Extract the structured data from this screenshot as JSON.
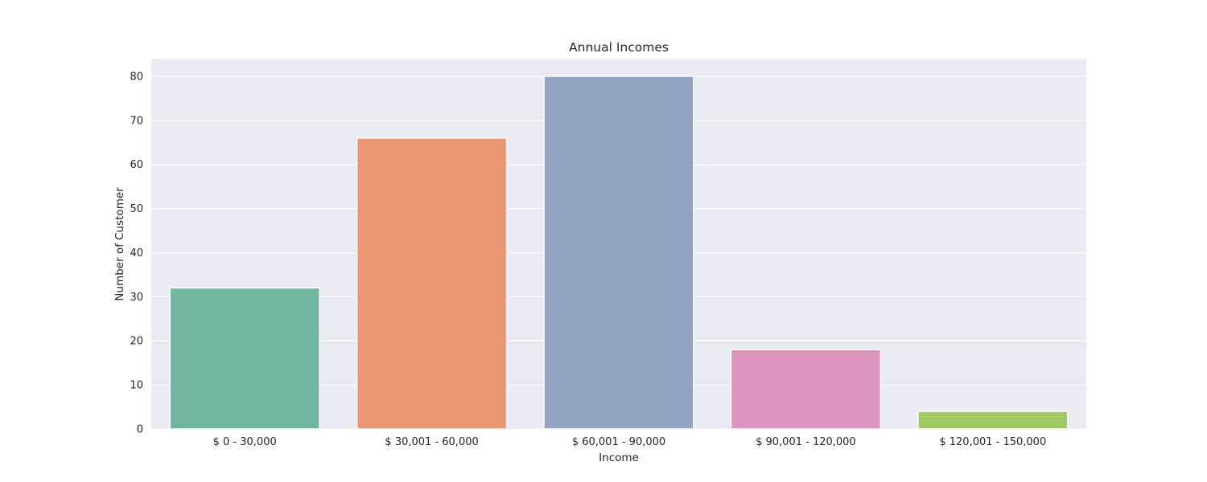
{
  "chart_data": {
    "type": "bar",
    "title": "Annual Incomes",
    "xlabel": "Income",
    "ylabel": "Number of Customer",
    "categories": [
      "$ 0 - 30,000",
      "$ 30,001 - 60,000",
      "$ 60,001 - 90,000",
      "$ 90,001 - 120,000",
      "$ 120,001 - 150,000"
    ],
    "values": [
      32,
      66,
      80,
      18,
      4
    ],
    "colors": [
      "#72b6a1",
      "#e99675",
      "#95a3c3",
      "#db96c0",
      "#a0c863"
    ],
    "ylim": [
      0,
      84
    ],
    "yticks": [
      0,
      10,
      20,
      30,
      40,
      50,
      60,
      70,
      80
    ],
    "grid": true,
    "legend": false,
    "background": "#eaeaf2"
  }
}
